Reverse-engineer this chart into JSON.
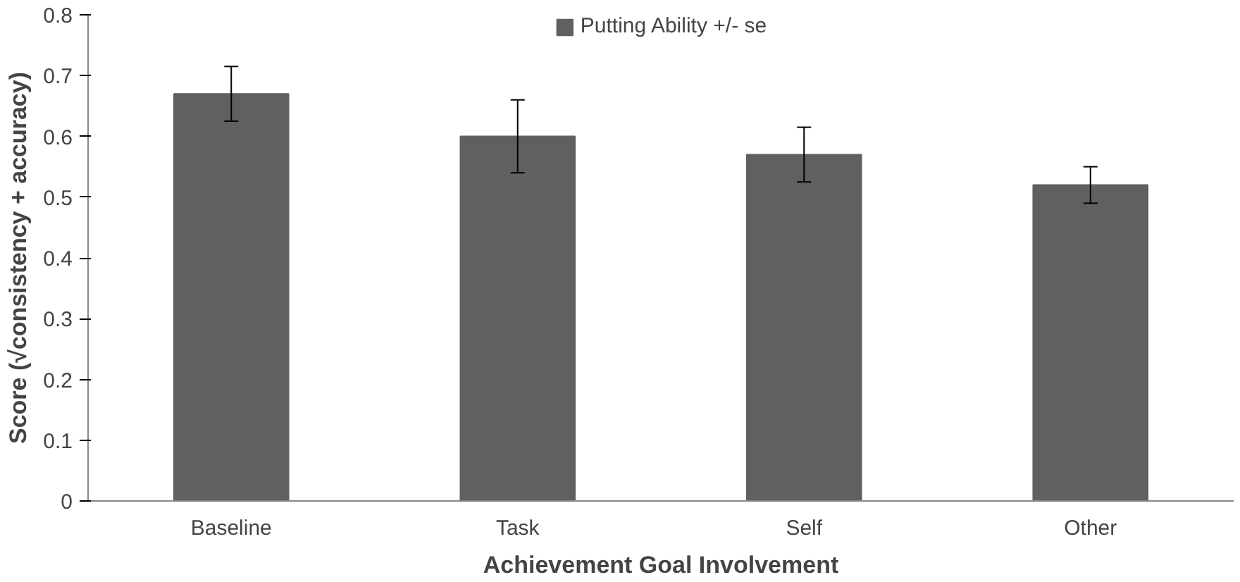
{
  "chart_data": {
    "type": "bar",
    "xlabel": "Achievement Goal Involvement",
    "ylabel": "Score (√consistency + accuracy)",
    "categories": [
      "Baseline",
      "Task",
      "Self",
      "Other"
    ],
    "series": [
      {
        "name": "Putting Ability +/- se",
        "color": "#606060",
        "values": [
          0.67,
          0.6,
          0.57,
          0.52
        ],
        "errors": [
          0.045,
          0.06,
          0.045,
          0.03
        ]
      }
    ],
    "ylim": [
      0,
      0.8
    ],
    "yticks": [
      0,
      0.1,
      0.2,
      0.3,
      0.4,
      0.5,
      0.6,
      0.7,
      0.8
    ],
    "grid": false,
    "legend": "top"
  }
}
